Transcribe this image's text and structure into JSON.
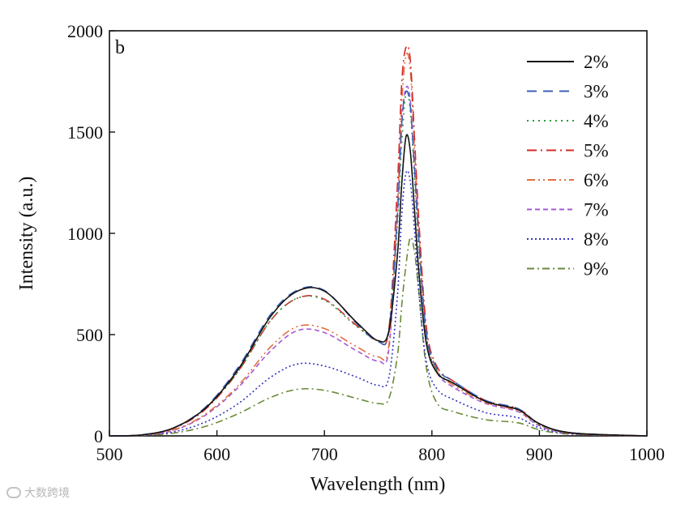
{
  "chart_data": {
    "type": "line",
    "panel_label": "b",
    "title": "",
    "xlabel": "Wavelength (nm)",
    "ylabel": "Intensity (a.u.)",
    "xlim": [
      500,
      1000
    ],
    "ylim": [
      0,
      2000
    ],
    "xticks": [
      500,
      600,
      700,
      800,
      900,
      1000
    ],
    "yticks": [
      0,
      500,
      1000,
      1500,
      2000
    ],
    "grid": false,
    "legend_position": "top-right",
    "x": [
      500,
      530,
      560,
      590,
      620,
      650,
      675,
      700,
      730,
      750,
      760,
      768,
      772,
      776,
      780,
      784,
      788,
      795,
      805,
      820,
      850,
      880,
      900,
      930,
      1000
    ],
    "series": [
      {
        "name": "2%",
        "color": "#111111",
        "dash": "",
        "values": [
          0,
          5,
          40,
          140,
          330,
          590,
          715,
          715,
          560,
          470,
          520,
          900,
          1250,
          1480,
          1400,
          1100,
          800,
          450,
          310,
          260,
          170,
          130,
          60,
          15,
          0
        ]
      },
      {
        "name": "3%",
        "color": "#3c5fb5",
        "dash": "12 8",
        "values": [
          0,
          5,
          40,
          145,
          340,
          600,
          720,
          718,
          555,
          465,
          520,
          1100,
          1550,
          1700,
          1620,
          1300,
          950,
          500,
          330,
          270,
          175,
          135,
          60,
          15,
          0
        ]
      },
      {
        "name": "4%",
        "color": "#2a9a3a",
        "dash": "2 5",
        "values": [
          0,
          5,
          40,
          140,
          320,
          570,
          680,
          670,
          540,
          470,
          530,
          1050,
          1450,
          1700,
          1600,
          1250,
          900,
          480,
          320,
          260,
          170,
          130,
          55,
          15,
          0
        ]
      },
      {
        "name": "5%",
        "color": "#d42a2a",
        "dash": "12 5 2 5",
        "values": [
          0,
          5,
          38,
          135,
          320,
          570,
          680,
          675,
          545,
          470,
          530,
          1250,
          1750,
          1920,
          1850,
          1450,
          1050,
          530,
          340,
          270,
          175,
          135,
          60,
          15,
          0
        ]
      },
      {
        "name": "6%",
        "color": "#e07040",
        "dash": "10 4 2 4 2 4",
        "values": [
          0,
          4,
          30,
          110,
          250,
          440,
          540,
          530,
          440,
          390,
          450,
          1150,
          1650,
          1880,
          1800,
          1400,
          1000,
          500,
          320,
          250,
          165,
          125,
          55,
          12,
          0
        ]
      },
      {
        "name": "7%",
        "color": "#a35ad8",
        "dash": "6 4",
        "values": [
          0,
          4,
          28,
          105,
          240,
          420,
          520,
          510,
          420,
          370,
          430,
          1100,
          1550,
          1720,
          1650,
          1300,
          950,
          480,
          310,
          240,
          160,
          120,
          50,
          12,
          0
        ]
      },
      {
        "name": "8%",
        "color": "#3535c0",
        "dash": "2 3",
        "values": [
          0,
          3,
          20,
          70,
          160,
          290,
          355,
          345,
          290,
          250,
          290,
          700,
          1100,
          1300,
          1250,
          1000,
          700,
          360,
          230,
          180,
          115,
          90,
          40,
          10,
          0
        ]
      },
      {
        "name": "9%",
        "color": "#6a8a3a",
        "dash": "9 4 2 4",
        "values": [
          0,
          2,
          14,
          48,
          110,
          190,
          230,
          225,
          185,
          160,
          185,
          400,
          650,
          850,
          980,
          900,
          700,
          330,
          160,
          120,
          80,
          65,
          30,
          8,
          0
        ]
      }
    ]
  }
}
